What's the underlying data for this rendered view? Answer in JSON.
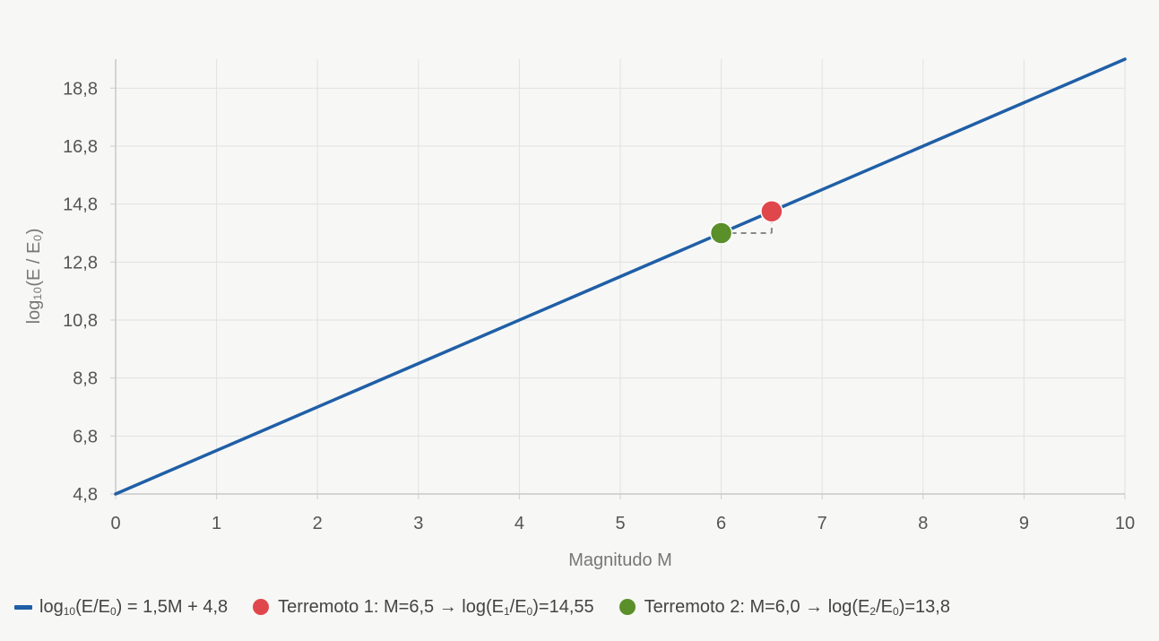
{
  "chart_data": {
    "type": "line",
    "title": "",
    "xlabel": "Magnitudo M",
    "ylabel": "log₁₀(E / E₀)",
    "xlim": [
      0,
      10
    ],
    "ylim": [
      4.8,
      19.8
    ],
    "x_ticks": [
      "0",
      "1",
      "2",
      "3",
      "4",
      "5",
      "6",
      "7",
      "8",
      "9",
      "10"
    ],
    "y_ticks": [
      "4,8",
      "6,8",
      "8,8",
      "10,8",
      "12,8",
      "14,8",
      "16,8",
      "18,8"
    ],
    "grid": true,
    "legend_position": "bottom",
    "series": [
      {
        "name": "log₁₀(E/E₀) = 1,5M + 4,8",
        "type": "line",
        "color": "#1f5fa6",
        "x": [
          0,
          10
        ],
        "y": [
          4.8,
          19.8
        ]
      },
      {
        "name": "Terremoto 1: M=6,5 → log(E₁/E₀)=14,55",
        "type": "scatter",
        "color": "#e0474c",
        "x": [
          6.5
        ],
        "y": [
          14.55
        ]
      },
      {
        "name": "Terremoto 2: M=6,0 → log(E₂/E₀)=13,8",
        "type": "scatter",
        "color": "#5a8f29",
        "x": [
          6.0
        ],
        "y": [
          13.8
        ]
      }
    ],
    "guides": [
      {
        "from": [
          6.0,
          13.8
        ],
        "to": [
          6.5,
          13.8
        ],
        "style": "dashed",
        "color": "#888888"
      },
      {
        "from": [
          6.5,
          13.8
        ],
        "to": [
          6.5,
          14.55
        ],
        "style": "dashed",
        "color": "#888888"
      }
    ]
  },
  "legend": {
    "items": [
      {
        "prefix": "log",
        "sub1": "10",
        "mid1": "(E/E",
        "sub2": "0",
        "suffix": ") = 1,5M + 4,8"
      },
      {
        "prefix": "Terremoto 1: M=6,5 → log(E",
        "sub1": "1",
        "mid1": "/E",
        "sub2": "0",
        "suffix": ")=14,55"
      },
      {
        "prefix": "Terremoto 2: M=6,0 → log(E",
        "sub1": "2",
        "mid1": "/E",
        "sub2": "0",
        "suffix": ")=13,8"
      }
    ]
  }
}
